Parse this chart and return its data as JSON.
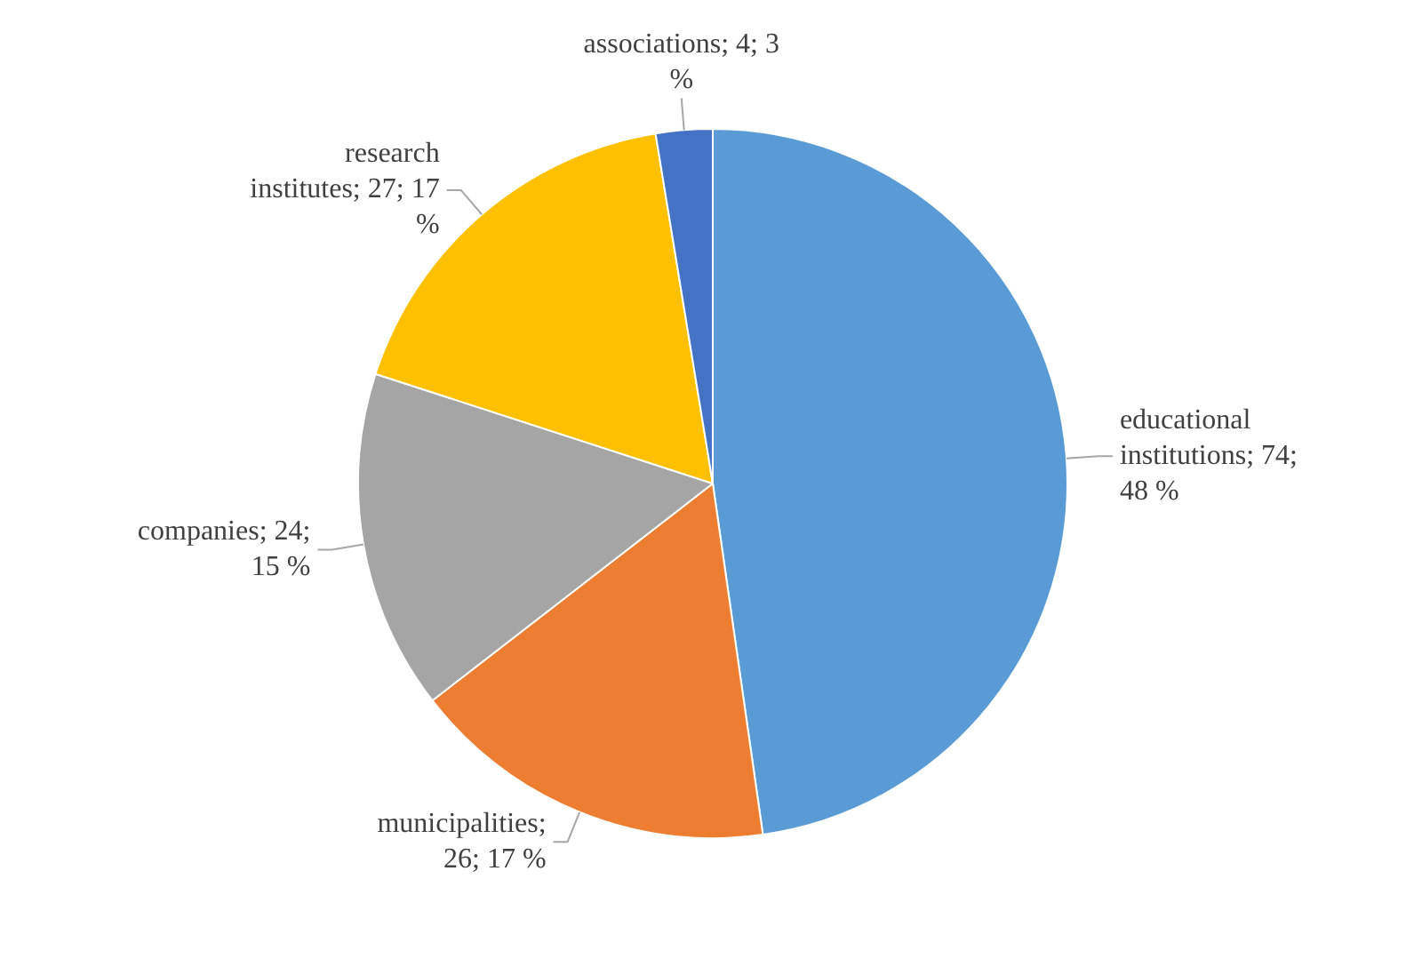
{
  "chart_data": {
    "type": "pie",
    "categories": [
      "educational institutions",
      "municipalities",
      "companies",
      "research institutes",
      "associations"
    ],
    "values": [
      74,
      26,
      24,
      27,
      4
    ],
    "value_labels": [
      "; 74; 48 %",
      "; 26; 17 %",
      "; 24; 15 %",
      "; 27; 17 %",
      "; 4; 3 %"
    ],
    "colors": [
      "#5b9bd5",
      "#ed7d31",
      "#a5a5a5",
      "#ffc000",
      "#4472c4"
    ],
    "legend": false
  }
}
